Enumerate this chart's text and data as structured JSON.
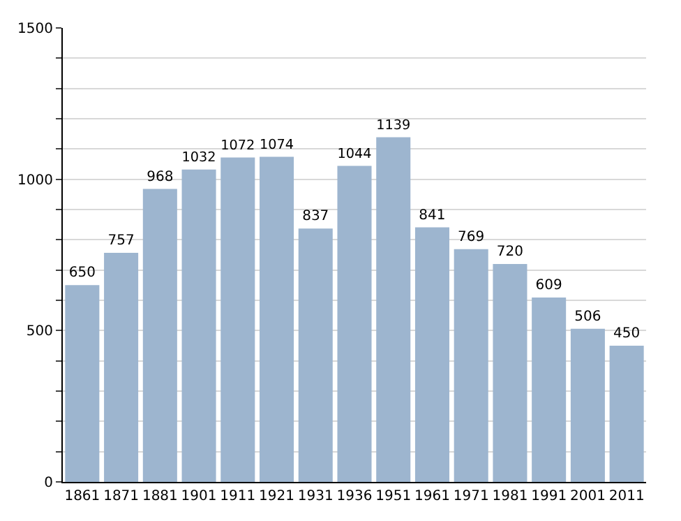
{
  "chart_data": {
    "type": "bar",
    "categories": [
      "1861",
      "1871",
      "1881",
      "1901",
      "1911",
      "1921",
      "1931",
      "1936",
      "1951",
      "1961",
      "1971",
      "1981",
      "1991",
      "2001",
      "2011"
    ],
    "values": [
      650,
      757,
      968,
      1032,
      1072,
      1074,
      837,
      1044,
      1139,
      841,
      769,
      720,
      609,
      506,
      450
    ],
    "color": "#9db5cf",
    "ylim": [
      0,
      1500
    ],
    "yticks": [
      0,
      {
        "value": 100,
        "label": null
      },
      {
        "value": 200,
        "label": null
      },
      {
        "value": 300,
        "label": null
      },
      {
        "value": 400,
        "label": null
      },
      500,
      {
        "value": 600,
        "label": null
      },
      {
        "value": 700,
        "label": null
      },
      {
        "value": 800,
        "label": null
      },
      {
        "value": 900,
        "label": null
      },
      1000,
      {
        "value": 1100,
        "label": null
      },
      {
        "value": 1200,
        "label": null
      },
      {
        "value": 1300,
        "label": null
      },
      {
        "value": 1400,
        "label": null
      },
      1500
    ],
    "grid": "y",
    "data_labels": true
  }
}
